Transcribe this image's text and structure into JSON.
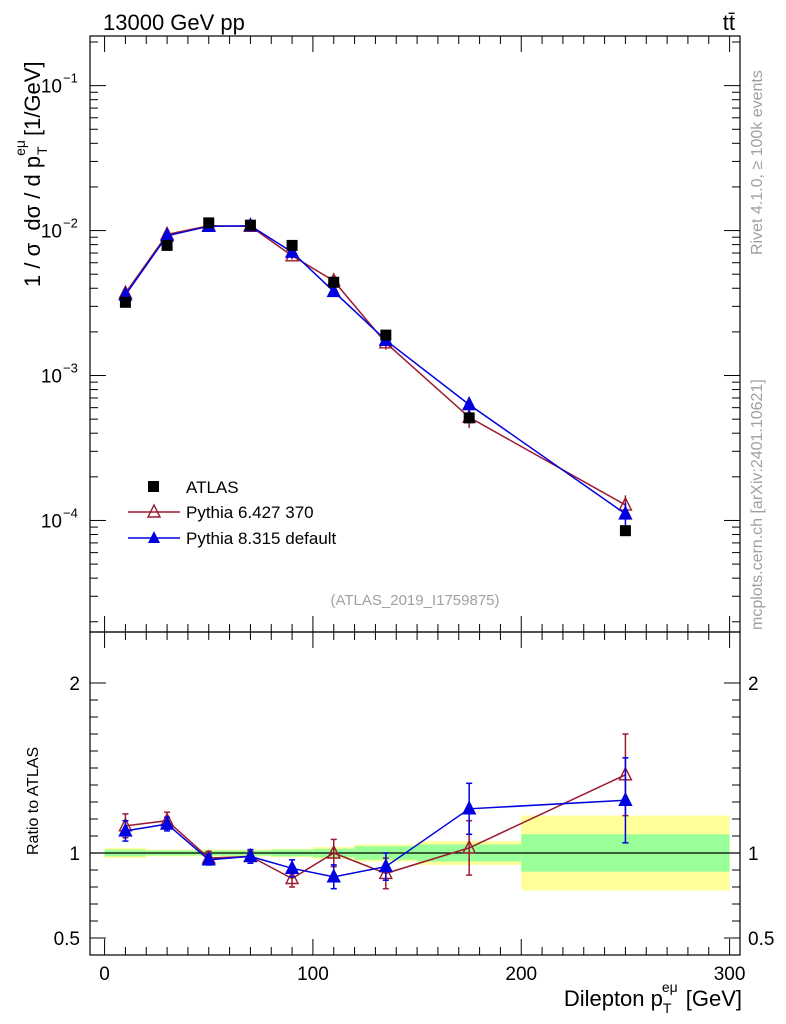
{
  "header": {
    "energy_label": "13000 GeV pp",
    "process_label": "tt̄"
  },
  "side": {
    "rivet_label": "Rivet 4.1.0, ≥ 100k events",
    "mcplots_label": "mcplots.cern.ch [arXiv:2401.10621]"
  },
  "analysis_label": "(ATLAS_2019_I1759875)",
  "legend": {
    "data_label": "ATLAS",
    "p6_label": "Pythia 6.427 370",
    "p8_label": "Pythia 8.315 default"
  },
  "colors": {
    "data": "#000000",
    "pythia6": "#9b1b30",
    "pythia8": "#0000e0",
    "band_inner": "#99ff99",
    "band_outer": "#ffff99"
  },
  "chart_data": {
    "type": "scatter",
    "title": "13000 GeV pp",
    "xlabel": "Dilepton p_T^{eμ} [GeV]",
    "ylabel": "1 / σ dσ / d p_T^{eμ} [1/GeV]",
    "ratio_ylabel": "Ratio to ATLAS",
    "xlim": [
      -7,
      305
    ],
    "ylim_main": [
      1.7e-05,
      0.22
    ],
    "ylim_ratio": [
      0.4,
      2.3
    ],
    "x_ticks": [
      0,
      100,
      200,
      300
    ],
    "main_ticks": [
      {
        "value": 0.1,
        "label": "10",
        "exp": "−1"
      },
      {
        "value": 0.01,
        "label": "10",
        "exp": "−2"
      },
      {
        "value": 0.001,
        "label": "10",
        "exp": "−3"
      },
      {
        "value": 0.0001,
        "label": "10",
        "exp": "−4"
      }
    ],
    "ratio_ticks": [
      {
        "value": 2,
        "label": "2"
      },
      {
        "value": 1,
        "label": "1"
      },
      {
        "value": 0.5,
        "label": "0.5"
      }
    ],
    "bins": [
      [
        0,
        20
      ],
      [
        20,
        40
      ],
      [
        40,
        60
      ],
      [
        60,
        80
      ],
      [
        80,
        100
      ],
      [
        100,
        120
      ],
      [
        120,
        150
      ],
      [
        150,
        200
      ],
      [
        200,
        300
      ]
    ],
    "x": [
      10,
      30,
      50,
      70,
      90,
      110,
      135,
      175,
      250
    ],
    "data_values": [
      0.0032,
      0.0079,
      0.0113,
      0.0109,
      0.0079,
      0.0044,
      0.0019,
      0.00051,
      8.5e-05
    ],
    "band_inner": [
      0.02,
      0.015,
      0.015,
      0.015,
      0.02,
      0.025,
      0.04,
      0.05,
      0.11
    ],
    "band_outer": [
      0.03,
      0.02,
      0.02,
      0.02,
      0.025,
      0.035,
      0.05,
      0.07,
      0.22
    ],
    "series": [
      {
        "name": "Pythia 6.427 370",
        "values": [
          0.0037,
          0.0094,
          0.0108,
          0.0107,
          0.0067,
          0.0045,
          0.00168,
          0.000515,
          0.000128
        ],
        "ratio": [
          1.16,
          1.19,
          0.97,
          0.98,
          0.85,
          1.0,
          0.88,
          1.03,
          1.46
        ],
        "ratio_err": [
          0.07,
          0.05,
          0.04,
          0.03,
          0.05,
          0.08,
          0.09,
          0.16,
          0.24
        ]
      },
      {
        "name": "Pythia 8.315 default",
        "values": [
          0.0036,
          0.0092,
          0.0107,
          0.0108,
          0.0071,
          0.0038,
          0.00175,
          0.00063,
          0.000111
        ],
        "ratio": [
          1.13,
          1.17,
          0.96,
          0.98,
          0.91,
          0.86,
          0.92,
          1.26,
          1.31
        ],
        "ratio_err": [
          0.06,
          0.04,
          0.03,
          0.04,
          0.05,
          0.07,
          0.08,
          0.15,
          0.25
        ]
      }
    ]
  }
}
